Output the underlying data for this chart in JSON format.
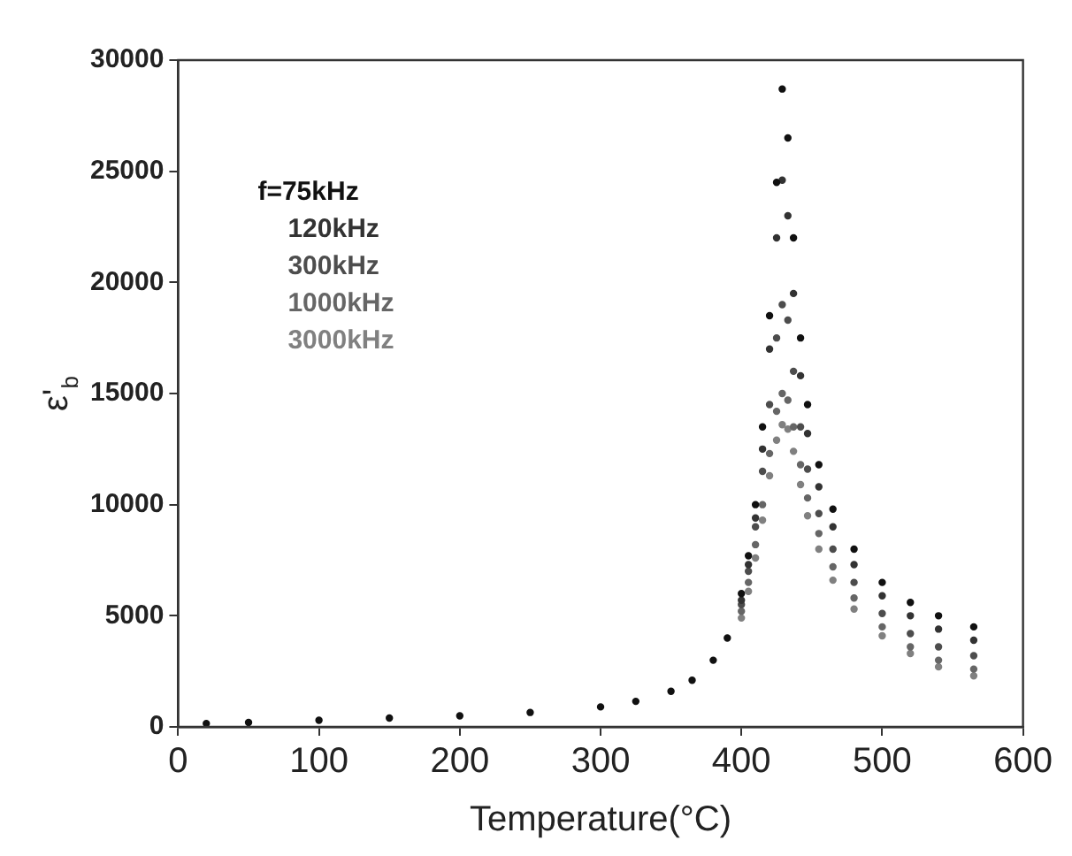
{
  "chart_data": {
    "type": "scatter",
    "xlabel": "Temperature(°C)",
    "ylabel": "ε'$_{b}$",
    "xlim": [
      0,
      600
    ],
    "ylim": [
      0,
      30000
    ],
    "xticks": [
      0,
      100,
      200,
      300,
      400,
      500,
      600
    ],
    "yticks": [
      0,
      5000,
      10000,
      15000,
      20000,
      25000,
      30000
    ],
    "grid": false,
    "legend": "top left",
    "marker": "circle",
    "x": [
      20,
      50,
      100,
      150,
      200,
      250,
      300,
      325,
      350,
      365,
      380,
      390,
      400,
      405,
      410,
      415,
      420,
      425,
      429,
      433,
      437,
      442,
      447,
      455,
      465,
      480,
      500,
      520,
      540,
      565
    ],
    "series": [
      {
        "name": "f=75kHz",
        "color": "#111111",
        "values": [
          150,
          200,
          300,
          400,
          500,
          650,
          900,
          1150,
          1600,
          2100,
          3000,
          4000,
          6000,
          7700,
          10000,
          13500,
          18500,
          24500,
          28700,
          26500,
          22000,
          17500,
          14500,
          11800,
          9800,
          8000,
          6500,
          5600,
          5000,
          4500
        ]
      },
      {
        "name": "120kHz",
        "color": "#333333",
        "x": [
          400,
          405,
          410,
          415,
          420,
          425,
          429,
          433,
          437,
          442,
          447,
          455,
          465,
          480,
          500,
          520,
          540,
          565
        ],
        "values": [
          5700,
          7300,
          9400,
          12500,
          17000,
          22000,
          24600,
          23000,
          19500,
          15800,
          13200,
          10800,
          9000,
          7300,
          5900,
          5000,
          4400,
          3900
        ]
      },
      {
        "name": "300kHz",
        "color": "#4d4d4d",
        "x": [
          400,
          405,
          410,
          415,
          420,
          425,
          429,
          433,
          437,
          442,
          447,
          455,
          465,
          480,
          500,
          520,
          540,
          565
        ],
        "values": [
          5500,
          7000,
          9000,
          11500,
          14500,
          17500,
          19000,
          18300,
          16000,
          13500,
          11600,
          9600,
          8000,
          6500,
          5100,
          4200,
          3600,
          3200
        ]
      },
      {
        "name": "1000kHz",
        "color": "#666666",
        "x": [
          400,
          405,
          410,
          415,
          420,
          425,
          429,
          433,
          437,
          442,
          447,
          455,
          465,
          480,
          500,
          520,
          540,
          565
        ],
        "values": [
          5200,
          6500,
          8200,
          10000,
          12300,
          14200,
          15000,
          14700,
          13500,
          11800,
          10300,
          8700,
          7200,
          5800,
          4500,
          3600,
          3000,
          2600
        ]
      },
      {
        "name": "3000kHz",
        "color": "#808080",
        "x": [
          400,
          405,
          410,
          415,
          420,
          425,
          429,
          433,
          437,
          442,
          447,
          455,
          465,
          480,
          500,
          520,
          540,
          565
        ],
        "values": [
          4900,
          6100,
          7600,
          9300,
          11300,
          12900,
          13600,
          13400,
          12400,
          10900,
          9500,
          8000,
          6600,
          5300,
          4100,
          3300,
          2700,
          2300
        ]
      }
    ]
  }
}
